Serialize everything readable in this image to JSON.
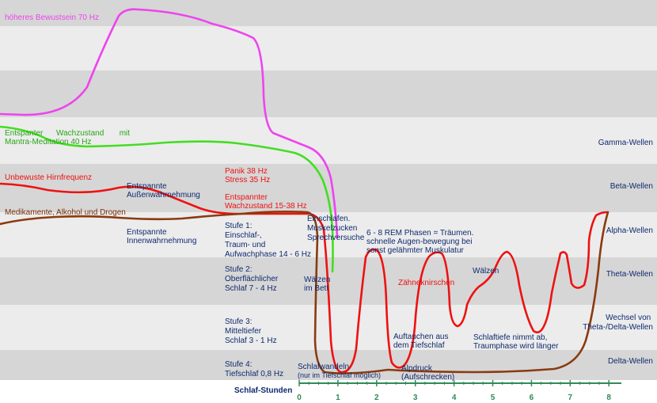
{
  "chart_data": {
    "type": "line",
    "xlabel": "Schlaf-Stunden",
    "x_ticks": [
      "0",
      "1",
      "2",
      "3",
      "4",
      "5",
      "6",
      "7",
      "8"
    ],
    "wave_bands": [
      "Gamma-Wellen",
      "Beta-Wellen",
      "Alpha-Wellen",
      "Theta-Wellen",
      "Wechsel von Theta-/Delta-Wellen",
      "Delta-Wellen"
    ],
    "stage_labels": [
      {
        "lines": [
          "Stufe 1:",
          "Einschlaf-,",
          "Traum- und",
          "Aufwachphase 14 - 6 Hz"
        ]
      },
      {
        "lines": [
          "Stufe 2:",
          "Oberflächlicher",
          "Schlaf 7 - 4 Hz"
        ]
      },
      {
        "lines": [
          "Stufe 3:",
          "Mitteltiefer",
          "Schlaf 3 - 1 Hz"
        ]
      },
      {
        "lines": [
          "Stufe 4:",
          "Tiefschlaf 0,8 Hz"
        ]
      }
    ],
    "curve_labels": {
      "magenta": "höheres Bewustsein 70 Hz",
      "green": [
        "Entspanter      Wachzustand       mit",
        "Mantra-Meditation 40 Hz"
      ],
      "red_start": "Unbewuste Hirnfrequenz",
      "brown_start": "Medikamente, Alkohol und Drogen"
    },
    "annotations": [
      {
        "lines": [
          "Entspannte",
          "Außenwahrnehmung"
        ],
        "color": "navy"
      },
      {
        "lines": [
          "Entspannte",
          "Innenwahrnehmung"
        ],
        "color": "navy"
      },
      {
        "lines": [
          "Panik 38 Hz",
          "Stress 35 Hz"
        ],
        "color": "red"
      },
      {
        "lines": [
          "Entspannter",
          "Wachzustand 15-38 Hz"
        ],
        "color": "red"
      },
      {
        "lines": [
          "Einschlafen.",
          "Muskelzucken",
          "Sprechversuche"
        ],
        "color": "navy"
      },
      {
        "lines": [
          "6 - 8 REM Phasen = Träumen.",
          "schnelle Augen-bewegung bei",
          "sonst gelähmter Muskulatur"
        ],
        "color": "navy"
      },
      {
        "lines": [
          "Zähneknirschen"
        ],
        "color": "red"
      },
      {
        "lines": [
          "Wälzen"
        ],
        "color": "navy"
      },
      {
        "lines": [
          "Wälzen",
          "im Bett"
        ],
        "color": "navy"
      },
      {
        "lines": [
          "Auftauchen aus",
          "dem Tiefschlaf"
        ],
        "color": "navy"
      },
      {
        "lines": [
          "Schlaftiefe nimmt ab,",
          "Traumphase wird länger"
        ],
        "color": "navy"
      },
      {
        "lines": [
          "Schlafwandeln",
          "(nur im Tiefschlaf möglich)"
        ],
        "color": "navy"
      },
      {
        "lines": [
          "Alpdruck",
          "(Aufschrecken)"
        ],
        "color": "navy"
      }
    ],
    "colors": {
      "magenta": "#ee44ee",
      "green": "#44dd22",
      "red": "#ee1111",
      "brown": "#8b3a0f",
      "navy": "#0f2a6e",
      "band_dark": "#d6d6d6",
      "band_light": "#ececec",
      "axis": "#2e8b57"
    }
  }
}
